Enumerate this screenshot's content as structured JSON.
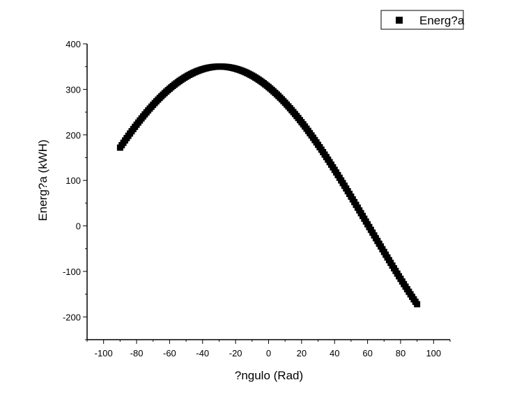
{
  "chart_data": {
    "type": "scatter",
    "title": "",
    "xlabel": "?ngulo (Rad)",
    "ylabel": "Energ?a (kWH)",
    "xlim": [
      -110,
      110
    ],
    "ylim": [
      -250,
      400
    ],
    "x_ticks": [
      -100,
      -80,
      -60,
      -40,
      -20,
      0,
      20,
      40,
      60,
      80,
      100
    ],
    "y_ticks": [
      -200,
      -100,
      0,
      100,
      200,
      300,
      400
    ],
    "x_tick_labels": [
      "-100",
      "-80",
      "-60",
      "-40",
      "-20",
      "0",
      "20",
      "40",
      "60",
      "80",
      "100"
    ],
    "y_tick_labels": [
      "-200",
      "-100",
      "0",
      "100",
      "200",
      "300",
      "400"
    ],
    "legend": {
      "position": "top-right",
      "entries": [
        "Energ?a"
      ]
    },
    "marker": "square",
    "series": [
      {
        "name": "Energ?a",
        "x_range": [
          -90,
          90
        ],
        "x_step": 1,
        "function": "A*cos(x) - B*sin(x), x in degrees",
        "A": 305,
        "B": 172,
        "peak": [
          -29.4,
          350
        ],
        "values_at": {
          "-90": 172,
          "-60": 301,
          "-30": 350,
          "0": 305,
          "30": 178,
          "60": 4,
          "90": -172
        }
      }
    ],
    "color": "#000000"
  }
}
